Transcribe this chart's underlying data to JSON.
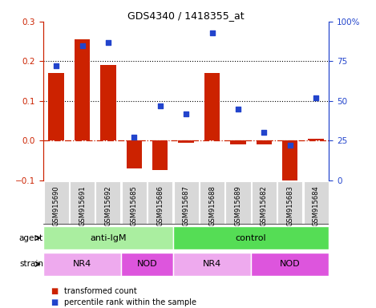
{
  "title": "GDS4340 / 1418355_at",
  "samples": [
    "GSM915690",
    "GSM915691",
    "GSM915692",
    "GSM915685",
    "GSM915686",
    "GSM915687",
    "GSM915688",
    "GSM915689",
    "GSM915682",
    "GSM915683",
    "GSM915684"
  ],
  "transformed_count": [
    0.17,
    0.255,
    0.19,
    -0.07,
    -0.075,
    -0.005,
    0.17,
    -0.01,
    -0.01,
    -0.115,
    0.005
  ],
  "percentile_rank": [
    72,
    85,
    87,
    27,
    47,
    42,
    93,
    45,
    30,
    22,
    52
  ],
  "ylim_left": [
    -0.1,
    0.3
  ],
  "ylim_right": [
    0,
    100
  ],
  "yticks_left": [
    -0.1,
    0.0,
    0.1,
    0.2,
    0.3
  ],
  "yticks_right": [
    0,
    25,
    50,
    75,
    100
  ],
  "ytick_labels_right": [
    "0",
    "25",
    "50",
    "75",
    "100%"
  ],
  "hlines": [
    0.1,
    0.2
  ],
  "bar_color": "#cc2200",
  "scatter_color": "#2244cc",
  "agent_groups": [
    {
      "label": "anti-IgM",
      "start": 0,
      "end": 5,
      "color": "#aaeea0"
    },
    {
      "label": "control",
      "start": 5,
      "end": 11,
      "color": "#55dd55"
    }
  ],
  "strain_groups": [
    {
      "label": "NR4",
      "start": 0,
      "end": 3,
      "color": "#eeaaee"
    },
    {
      "label": "NOD",
      "start": 3,
      "end": 5,
      "color": "#dd55dd"
    },
    {
      "label": "NR4",
      "start": 5,
      "end": 8,
      "color": "#eeaaee"
    },
    {
      "label": "NOD",
      "start": 8,
      "end": 11,
      "color": "#dd55dd"
    }
  ],
  "agent_label": "agent",
  "strain_label": "strain",
  "legend_bar_label": "transformed count",
  "legend_scatter_label": "percentile rank within the sample",
  "tick_box_color": "#d8d8d8"
}
